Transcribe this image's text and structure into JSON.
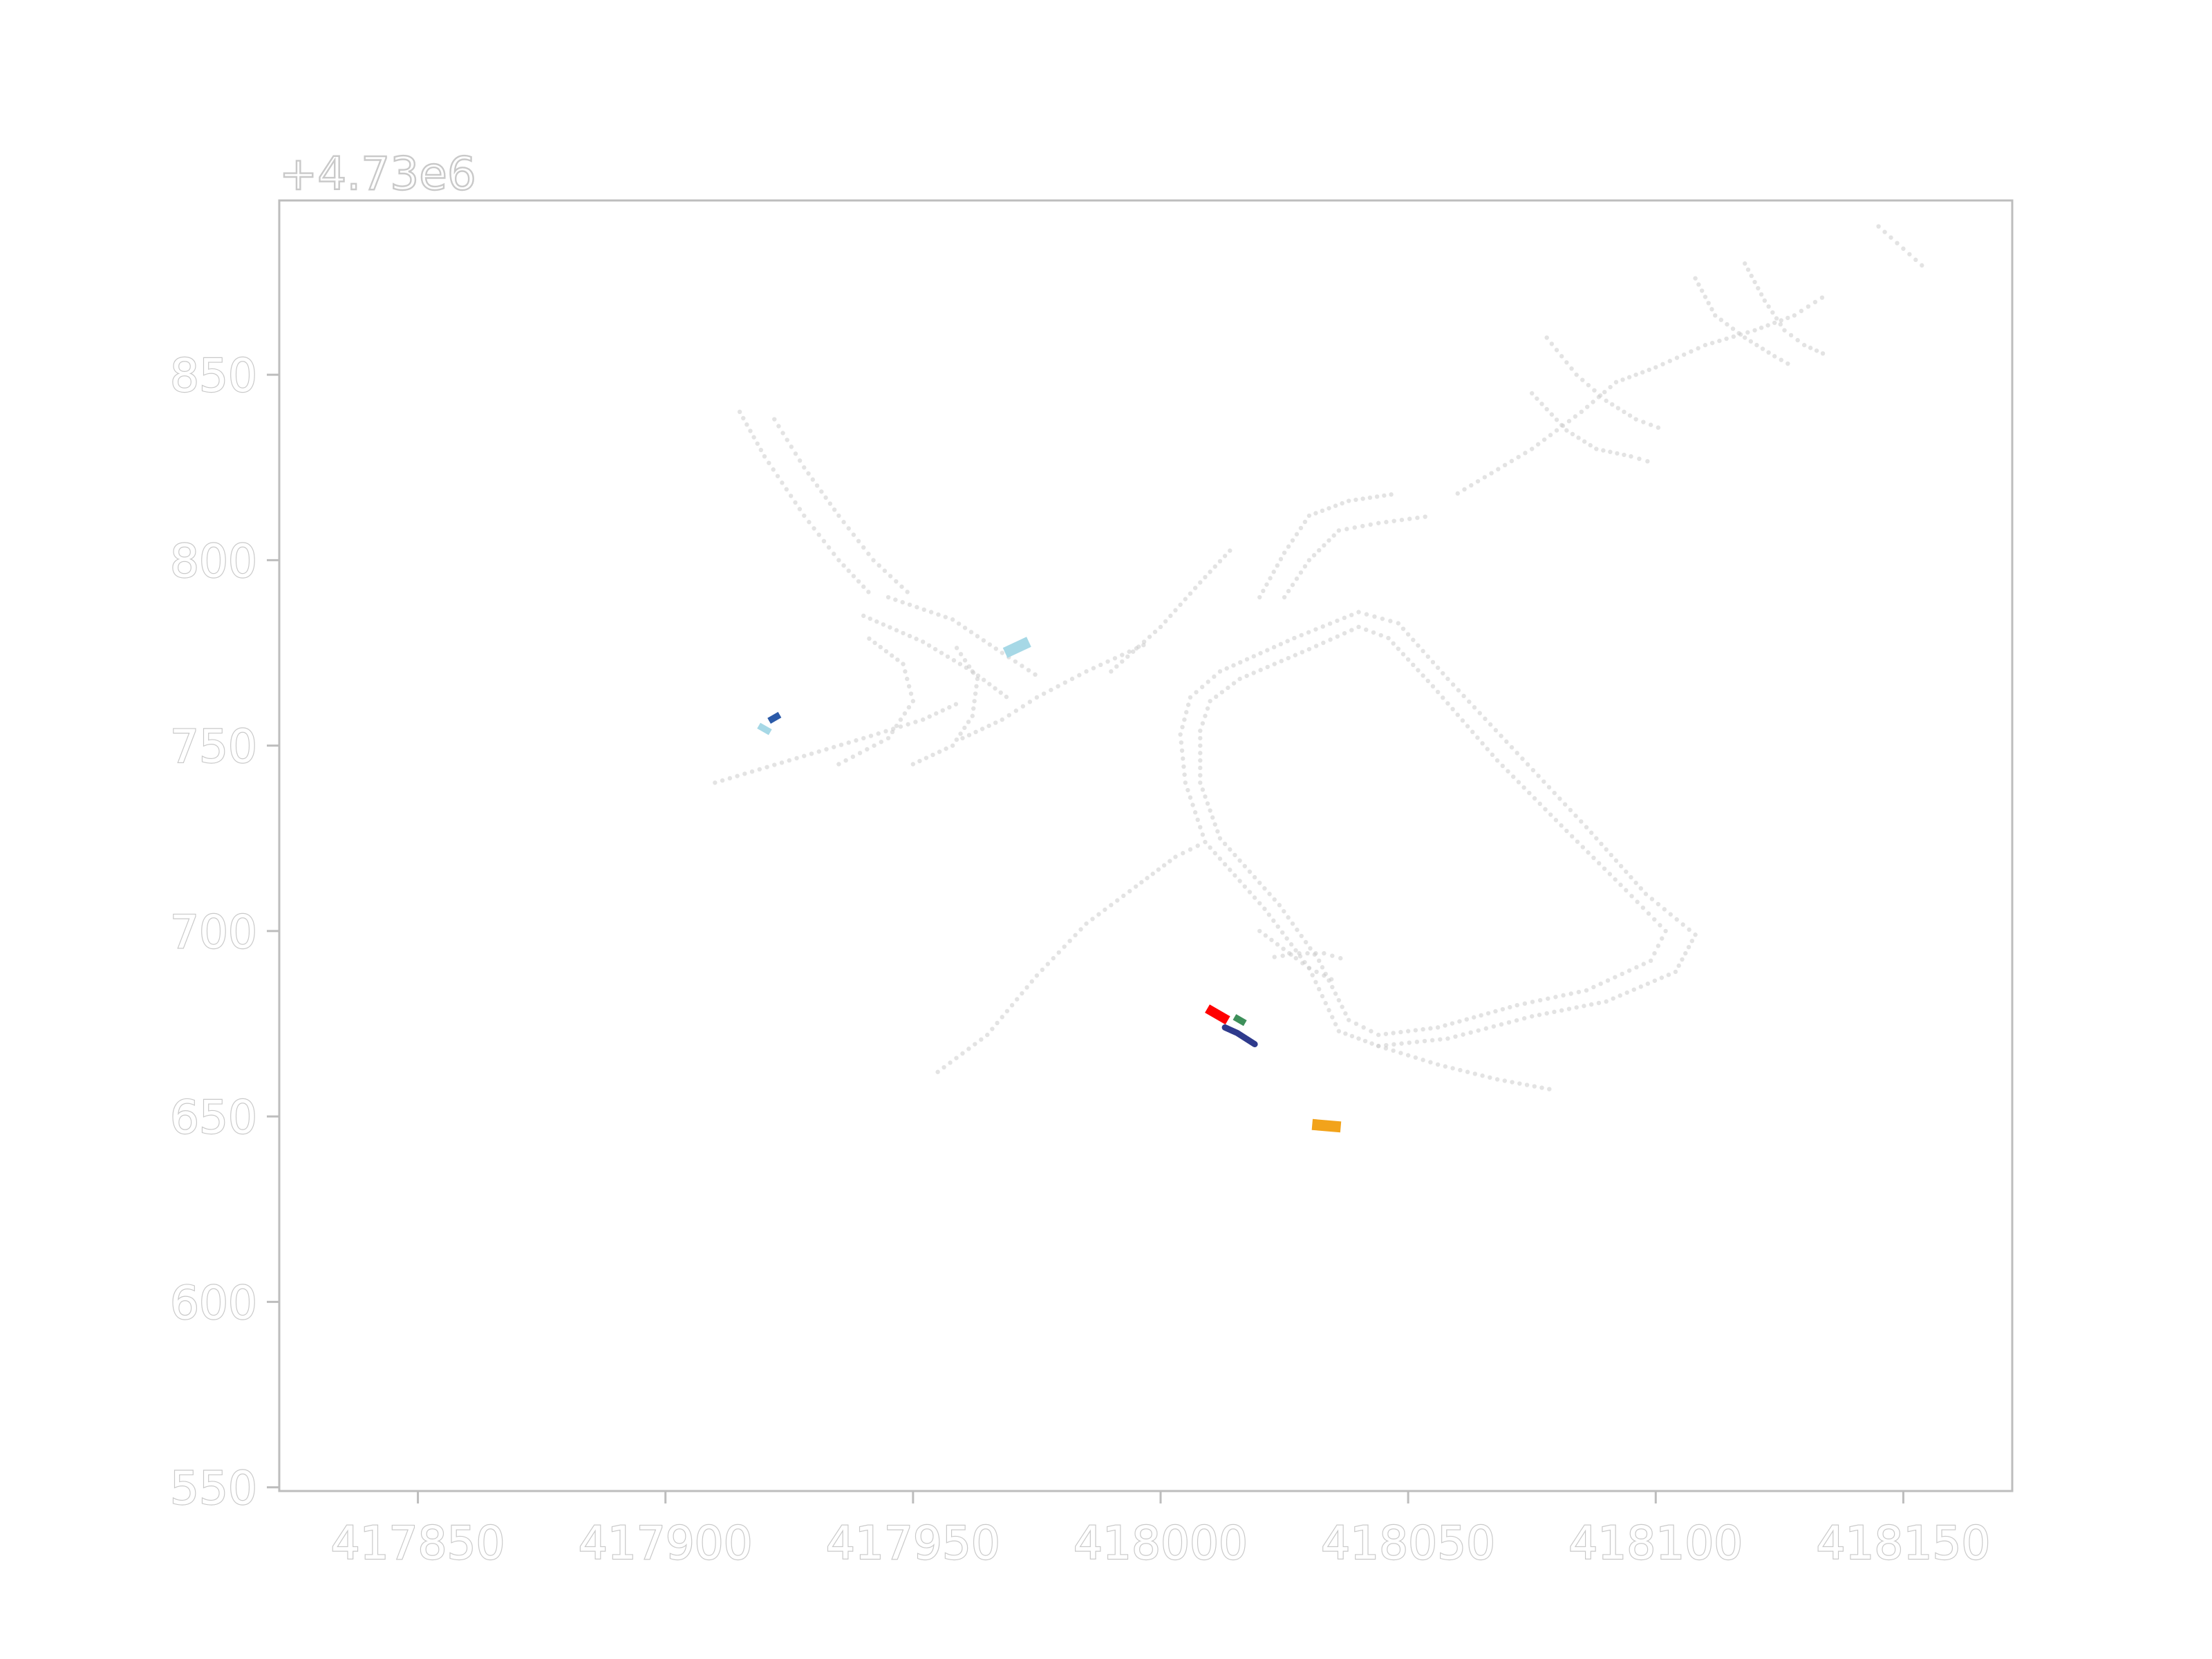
{
  "chart_data": {
    "type": "scatter",
    "title": "",
    "xlabel": "",
    "ylabel": "",
    "xlim": [
      417822,
      418172
    ],
    "ylim": [
      549,
      897
    ],
    "y_offset_label": "+4.73e6",
    "xticks": [
      417850,
      417900,
      417950,
      418000,
      418050,
      418100,
      418150
    ],
    "xtick_labels": [
      "417850",
      "417900",
      "417950",
      "418000",
      "418050",
      "418100",
      "418150"
    ],
    "yticks": [
      550,
      600,
      650,
      700,
      750,
      800,
      850
    ],
    "ytick_labels": [
      "550",
      "600",
      "650",
      "700",
      "750",
      "800",
      "850"
    ],
    "grid": false,
    "legend": "none",
    "colors": {
      "map_points": "#cccccc",
      "axis": "#bdbdbd",
      "ego": "#ff0000",
      "trajectory": "#2e3a8c",
      "agent_green": "#3d8f5a",
      "agent_orange": "#f2a31b",
      "agent_lightblue": "#a6d8e6",
      "agent_darkblue": "#2b5aa8"
    },
    "agents": [
      {
        "name": "ego",
        "x": 418011.5,
        "y": 677.5,
        "length": 4.5,
        "width": 2.2,
        "heading_deg": -30,
        "color": "#ff0000"
      },
      {
        "name": "agent_green",
        "x": 418016,
        "y": 676,
        "length": 2.2,
        "width": 1.4,
        "heading_deg": -30,
        "color": "#3d8f5a"
      },
      {
        "name": "agent_orange",
        "x": 418033.5,
        "y": 647.5,
        "length": 5.5,
        "width": 2.6,
        "heading_deg": -5,
        "color": "#f2a31b"
      },
      {
        "name": "agent_lightblue_1",
        "x": 417971,
        "y": 776.5,
        "length": 5,
        "width": 2.6,
        "heading_deg": 25,
        "color": "#a6d8e6"
      },
      {
        "name": "agent_darkblue",
        "x": 417922,
        "y": 757.5,
        "length": 2.2,
        "width": 1.4,
        "heading_deg": 30,
        "color": "#2b5aa8"
      },
      {
        "name": "agent_lightblue_2",
        "x": 417920,
        "y": 754.5,
        "length": 2.4,
        "width": 1.4,
        "heading_deg": -30,
        "color": "#a6d8e6"
      }
    ],
    "trajectory": {
      "x": [
        418013,
        418015.5,
        418019
      ],
      "y": [
        674,
        672.5,
        669.5
      ]
    },
    "map_lanes": [
      {
        "points": [
          [
            418004,
            753
          ],
          [
            418006,
            763
          ],
          [
            418012,
            770
          ],
          [
            418027,
            779
          ],
          [
            418040,
            786
          ],
          [
            418048,
            783
          ],
          [
            418058,
            768
          ],
          [
            418072,
            748
          ],
          [
            418086,
            728
          ],
          [
            418098,
            710
          ],
          [
            418108,
            699
          ],
          [
            418104,
            689
          ],
          [
            418090,
            681
          ],
          [
            418075,
            677
          ],
          [
            418058,
            671
          ],
          [
            418044,
            669
          ],
          [
            418036,
            673
          ],
          [
            418030,
            690
          ],
          [
            418021,
            706
          ],
          [
            418009,
            724
          ],
          [
            418005,
            740
          ],
          [
            418004,
            753
          ]
        ]
      },
      {
        "points": [
          [
            418008,
            754
          ],
          [
            418010,
            762
          ],
          [
            418016,
            768
          ],
          [
            418030,
            776
          ],
          [
            418040,
            782
          ],
          [
            418046,
            779
          ],
          [
            418055,
            766
          ],
          [
            418068,
            746
          ],
          [
            418082,
            727
          ],
          [
            418094,
            711
          ],
          [
            418102,
            700
          ],
          [
            418099,
            692
          ],
          [
            418086,
            684
          ],
          [
            418072,
            680
          ],
          [
            418056,
            674
          ],
          [
            418044,
            672
          ],
          [
            418038,
            676
          ],
          [
            418032,
            692
          ],
          [
            418024,
            707
          ],
          [
            418012,
            725
          ],
          [
            418008,
            740
          ],
          [
            418008,
            754
          ]
        ]
      },
      {
        "points": [
          [
            417955,
            662
          ],
          [
            417965,
            672
          ],
          [
            417975,
            688
          ],
          [
            417985,
            702
          ],
          [
            417995,
            712
          ],
          [
            418003,
            720
          ],
          [
            418009,
            724
          ]
        ]
      },
      {
        "points": [
          [
            418044,
            669
          ],
          [
            418056,
            664
          ],
          [
            418068,
            660
          ],
          [
            418080,
            657
          ]
        ]
      },
      {
        "points": [
          [
            417910,
            740
          ],
          [
            417925,
            746
          ],
          [
            417940,
            752
          ],
          [
            417952,
            757
          ],
          [
            417960,
            762
          ]
        ]
      },
      {
        "points": [
          [
            417940,
            785
          ],
          [
            417952,
            778
          ],
          [
            417962,
            770
          ],
          [
            417970,
            762
          ]
        ]
      },
      {
        "points": [
          [
            417945,
            790
          ],
          [
            417958,
            784
          ],
          [
            417968,
            775
          ],
          [
            417976,
            768
          ]
        ]
      },
      {
        "points": [
          [
            417950,
            745
          ],
          [
            417958,
            750
          ],
          [
            417962,
            758
          ],
          [
            417963,
            768
          ],
          [
            417958,
            778
          ]
        ]
      },
      {
        "points": [
          [
            417935,
            745
          ],
          [
            417945,
            752
          ],
          [
            417950,
            762
          ],
          [
            417948,
            772
          ],
          [
            417940,
            780
          ]
        ]
      },
      {
        "points": [
          [
            417960,
            752
          ],
          [
            417968,
            757
          ],
          [
            417975,
            763
          ],
          [
            417985,
            770
          ],
          [
            417998,
            778
          ]
        ]
      },
      {
        "points": [
          [
            417915,
            840
          ],
          [
            417920,
            828
          ],
          [
            417928,
            812
          ],
          [
            417935,
            800
          ],
          [
            417942,
            790
          ]
        ]
      },
      {
        "points": [
          [
            417922,
            838
          ],
          [
            417928,
            825
          ],
          [
            417935,
            812
          ],
          [
            417942,
            800
          ],
          [
            417950,
            790
          ]
        ]
      },
      {
        "points": [
          [
            418020,
            790
          ],
          [
            418025,
            802
          ],
          [
            418030,
            812
          ],
          [
            418038,
            816
          ],
          [
            418048,
            818
          ]
        ]
      },
      {
        "points": [
          [
            418025,
            790
          ],
          [
            418030,
            800
          ],
          [
            418036,
            808
          ],
          [
            418044,
            810
          ],
          [
            418055,
            812
          ]
        ]
      },
      {
        "points": [
          [
            418060,
            818
          ],
          [
            418075,
            830
          ],
          [
            418085,
            840
          ],
          [
            418092,
            848
          ],
          [
            418100,
            852
          ]
        ]
      },
      {
        "points": [
          [
            418075,
            845
          ],
          [
            418082,
            835
          ],
          [
            418088,
            830
          ],
          [
            418095,
            828
          ],
          [
            418100,
            826
          ]
        ]
      },
      {
        "points": [
          [
            418078,
            860
          ],
          [
            418084,
            850
          ],
          [
            418090,
            843
          ],
          [
            418096,
            838
          ],
          [
            418102,
            835
          ]
        ]
      },
      {
        "points": [
          [
            418100,
            852
          ],
          [
            418110,
            858
          ],
          [
            418120,
            862
          ],
          [
            418128,
            866
          ],
          [
            418135,
            872
          ]
        ]
      },
      {
        "points": [
          [
            418108,
            876
          ],
          [
            418112,
            866
          ],
          [
            418118,
            860
          ],
          [
            418124,
            855
          ],
          [
            418128,
            852
          ]
        ]
      },
      {
        "points": [
          [
            418118,
            880
          ],
          [
            418122,
            870
          ],
          [
            418126,
            862
          ],
          [
            418130,
            858
          ],
          [
            418135,
            855
          ]
        ]
      },
      {
        "points": [
          [
            418020,
            700
          ],
          [
            418026,
            694
          ],
          [
            418030,
            690
          ],
          [
            418036,
            686
          ]
        ]
      },
      {
        "points": [
          [
            418023,
            693
          ],
          [
            418028,
            694
          ],
          [
            418033,
            694
          ],
          [
            418038,
            692
          ]
        ]
      },
      {
        "points": [
          [
            418145,
            890
          ],
          [
            418150,
            884
          ],
          [
            418155,
            878
          ]
        ]
      },
      {
        "points": [
          [
            417990,
            770
          ],
          [
            418000,
            782
          ],
          [
            418008,
            794
          ],
          [
            418015,
            804
          ]
        ]
      }
    ]
  }
}
